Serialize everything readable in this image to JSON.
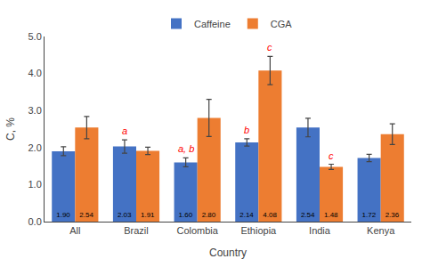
{
  "chart_data": {
    "type": "bar",
    "xlabel": "Country",
    "ylabel": "C, %",
    "categories": [
      "All",
      "Brazil",
      "Colombia",
      "Ethiopia",
      "India",
      "Kenya"
    ],
    "series": [
      {
        "name": "Caffeine",
        "color": "#4472C4",
        "values": [
          1.9,
          2.03,
          1.6,
          2.14,
          2.54,
          1.72
        ],
        "value_labels": [
          "1.90",
          "2.03",
          "1.60",
          "2.14",
          "2.54",
          "1.72"
        ],
        "errors": [
          0.12,
          0.18,
          0.12,
          0.1,
          0.25,
          0.1
        ]
      },
      {
        "name": "CGA",
        "color": "#ED7D31",
        "values": [
          2.54,
          1.91,
          2.8,
          4.08,
          1.48,
          2.36
        ],
        "value_labels": [
          "2.54",
          "1.91",
          "2.80",
          "4.08",
          "1.48",
          "2.36"
        ],
        "errors": [
          0.3,
          0.1,
          0.5,
          0.38,
          0.07,
          0.28
        ]
      }
    ],
    "ylim": [
      0.0,
      5.0
    ],
    "yticks": [
      {
        "value": 0,
        "label": "0.0"
      },
      {
        "value": 1,
        "label": "1.0"
      },
      {
        "value": 2,
        "label": "2.0"
      },
      {
        "value": 3,
        "label": "3.0"
      },
      {
        "value": 4,
        "label": "4.0"
      },
      {
        "value": 5,
        "label": "5.0"
      }
    ],
    "annotations": [
      {
        "category": "Brazil",
        "series": "Caffeine",
        "text": "a",
        "color": "#FF0000"
      },
      {
        "category": "Colombia",
        "series": "Caffeine",
        "text": "a, b",
        "color": "#FF0000"
      },
      {
        "category": "Ethiopia",
        "series": "Caffeine",
        "text": "b",
        "color": "#FF0000"
      },
      {
        "category": "Ethiopia",
        "series": "CGA",
        "text": "c",
        "color": "#FF0000"
      },
      {
        "category": "India",
        "series": "CGA",
        "text": "c",
        "color": "#FF0000"
      }
    ],
    "data_labels": true,
    "grid": false,
    "legend": "top"
  }
}
